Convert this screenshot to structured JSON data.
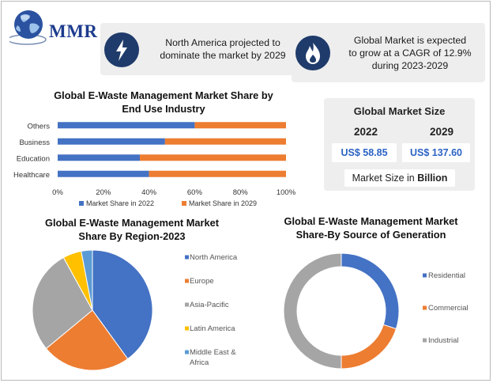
{
  "header": {
    "logo_text": "MMR",
    "highlight_1": {
      "icon": "lightning-icon",
      "line1": "North America projected to",
      "line2": "dominate the market by 2029"
    },
    "highlight_2": {
      "icon": "flame-icon",
      "line1": "Global Market is expected",
      "line2": "to grow at a CAGR of 12.9%",
      "line3": "during 2023-2029"
    }
  },
  "market_size": {
    "title": "Global Market Size",
    "year_1": "2022",
    "year_2": "2029",
    "value_1": "US$ 58.85",
    "value_2": "US$ 137.60",
    "note_prefix": "Market Size in ",
    "note_bold": "Billion"
  },
  "colors": {
    "blue": "#4472c4",
    "orange": "#ed7d31",
    "gray": "#a5a5a5",
    "yellow": "#ffc000",
    "lightblue": "#5b9bd5",
    "value_text": "#2b63c4"
  },
  "chart_data": [
    {
      "type": "bar",
      "orientation": "horizontal",
      "stacked": "percent",
      "title_line1": "Global E-Waste Management Market Share by",
      "title_line2": "End Use Industry",
      "categories": [
        "Others",
        "Business",
        "Education",
        "Healthcare"
      ],
      "series": [
        {
          "name": "Market Share in 2022",
          "values": [
            60,
            47,
            36,
            40
          ],
          "color": "#4472c4"
        },
        {
          "name": "Market Share in 2029",
          "values": [
            40,
            53,
            64,
            60
          ],
          "color": "#ed7d31"
        }
      ],
      "xlim": [
        0,
        100
      ],
      "xticks": [
        "0%",
        "20%",
        "40%",
        "60%",
        "80%",
        "100%"
      ],
      "legend": "bottom"
    },
    {
      "type": "pie",
      "title_line1": "Global E-Waste Management Market",
      "title_line2": "Share By Region-2023",
      "categories": [
        "North America",
        "Europe",
        "Asia-Pacific",
        "Latin America",
        "Middle East & Africa"
      ],
      "legend_labels": [
        [
          "North America"
        ],
        [
          "Europe"
        ],
        [
          "Asia-Pacific"
        ],
        [
          "Latin America"
        ],
        [
          "Middle East &",
          "Africa"
        ]
      ],
      "values": [
        40,
        24,
        28,
        5,
        3
      ],
      "colors": [
        "#4472c4",
        "#ed7d31",
        "#a5a5a5",
        "#ffc000",
        "#5b9bd5"
      ],
      "legend": "right"
    },
    {
      "type": "pie",
      "variant": "donut",
      "title_line1": "Global E-Waste Management Market",
      "title_line2": "Share-By Source of Generation",
      "categories": [
        "Residential",
        "Commercial",
        "Industrial"
      ],
      "values": [
        30,
        20,
        50
      ],
      "colors": [
        "#4472c4",
        "#ed7d31",
        "#a5a5a5"
      ],
      "legend": "right"
    }
  ]
}
